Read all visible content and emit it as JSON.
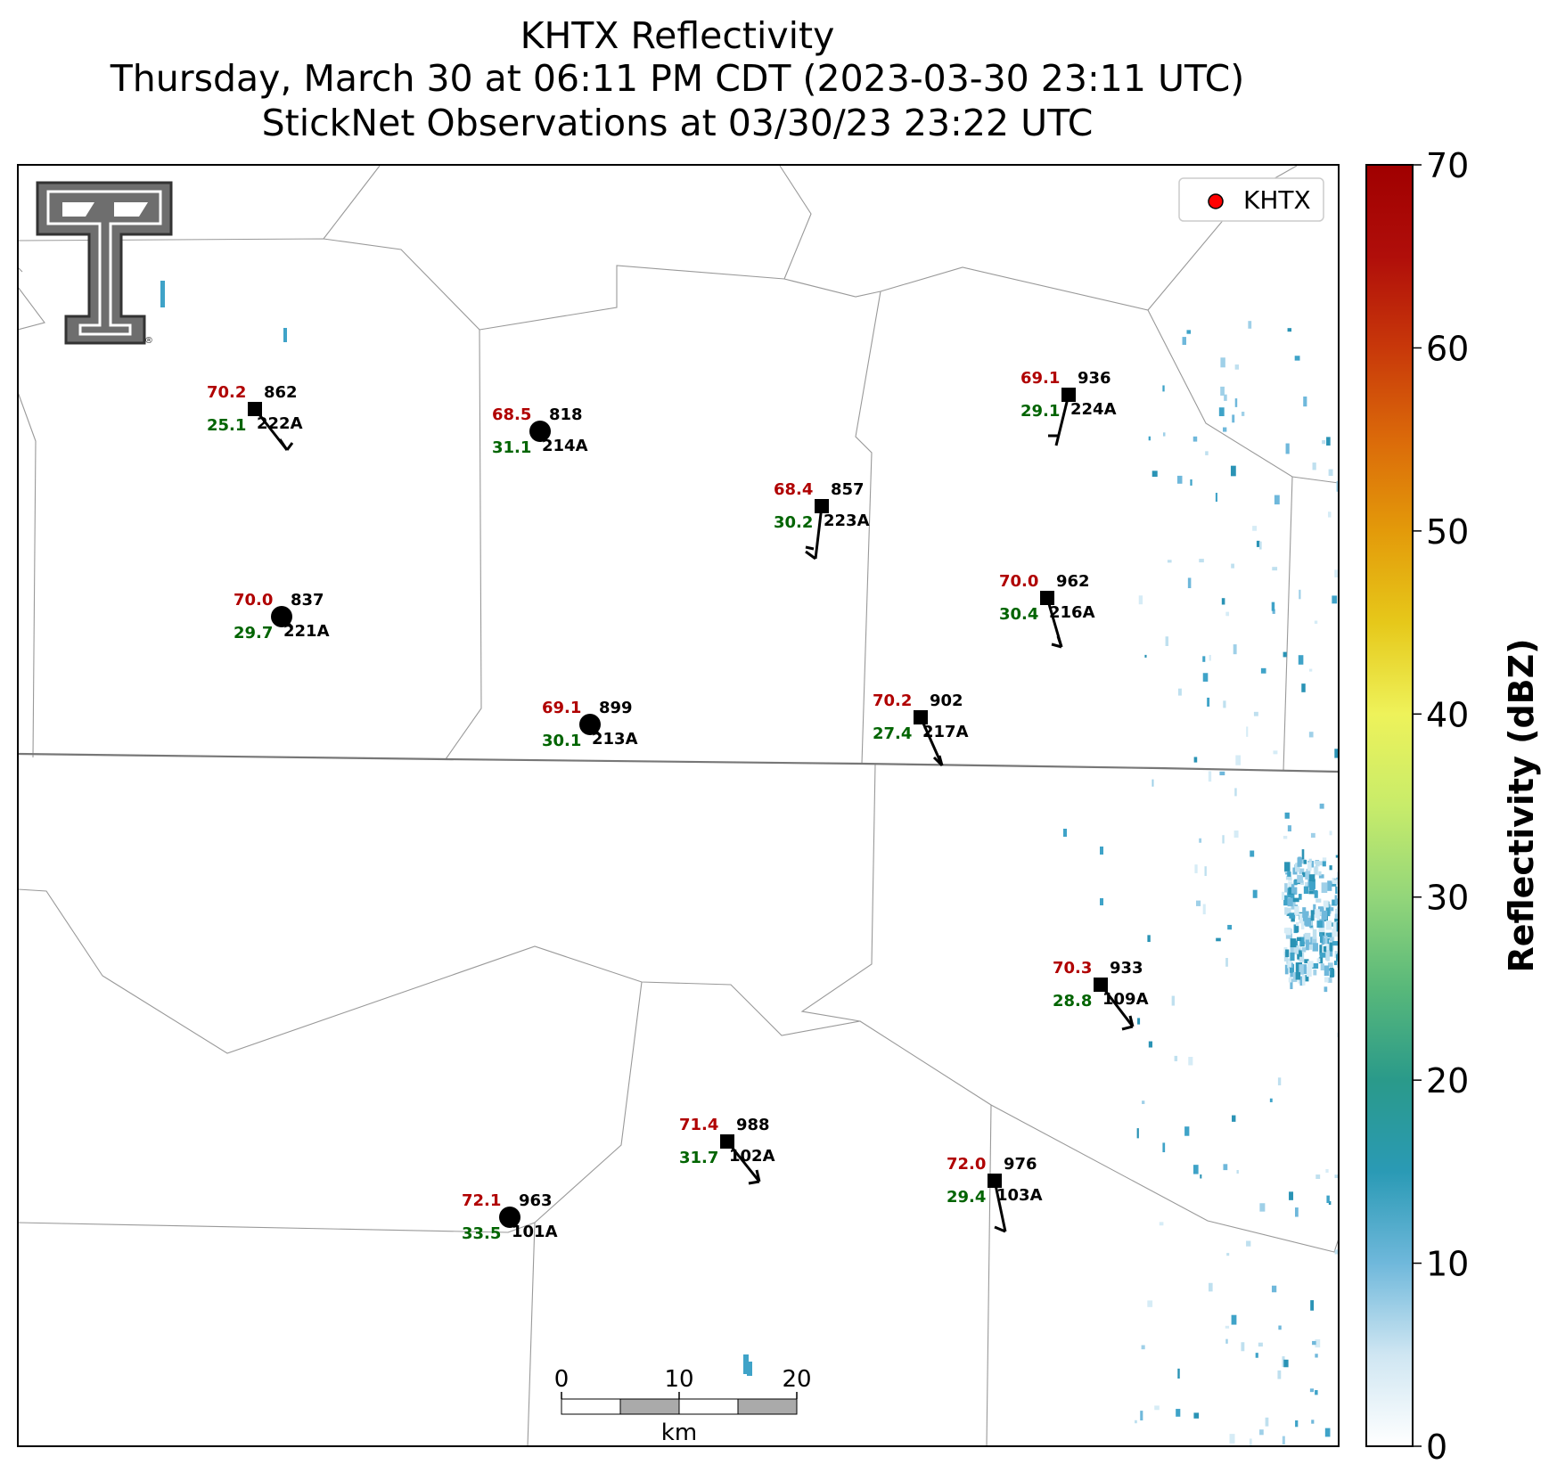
{
  "title": {
    "line1": "KHTX Reflectivity",
    "line2": "Thursday, March 30 at 06:11 PM CDT (2023-03-30 23:11 UTC)",
    "line3": "StickNet Observations at 03/30/23 23:22 UTC"
  },
  "legend": {
    "label": "KHTX",
    "marker_color": "#ff0000"
  },
  "logo": {
    "name": "texas-tech-double-t-logo",
    "mark": "®"
  },
  "colorbar": {
    "label": "Reflectivity (dBZ)",
    "min": 0,
    "max": 70,
    "ticks": [
      "0",
      "10",
      "20",
      "30",
      "40",
      "50",
      "60",
      "70"
    ],
    "colors": [
      "#ffffff",
      "#cfe6f2",
      "#6fb8db",
      "#2a9ab5",
      "#2a9a8a",
      "#58b87a",
      "#93d67a",
      "#c8ec6a",
      "#eef25a",
      "#e6c81a",
      "#e39a0a",
      "#db6a0a",
      "#c8380a",
      "#b00e0a",
      "#a00000"
    ]
  },
  "scalebar": {
    "ticks": [
      "0",
      "10",
      "20"
    ],
    "unit": "km"
  },
  "colors": {
    "temperature": "#b00000",
    "dewpoint": "#006400",
    "station": "#000000",
    "boundary": "#999999",
    "state_line": "#777777"
  },
  "stations": [
    {
      "id": "222A",
      "temp": "70.2",
      "dew": "25.1",
      "pres": "862",
      "marker": "square"
    },
    {
      "id": "214A",
      "temp": "68.5",
      "dew": "31.1",
      "pres": "818",
      "marker": "circle"
    },
    {
      "id": "223A",
      "temp": "68.4",
      "dew": "30.2",
      "pres": "857",
      "marker": "square"
    },
    {
      "id": "224A",
      "temp": "69.1",
      "dew": "29.1",
      "pres": "936",
      "marker": "square"
    },
    {
      "id": "221A",
      "temp": "70.0",
      "dew": "29.7",
      "pres": "837",
      "marker": "circle"
    },
    {
      "id": "216A",
      "temp": "70.0",
      "dew": "30.4",
      "pres": "962",
      "marker": "square"
    },
    {
      "id": "213A",
      "temp": "69.1",
      "dew": "30.1",
      "pres": "899",
      "marker": "circle"
    },
    {
      "id": "217A",
      "temp": "70.2",
      "dew": "27.4",
      "pres": "902",
      "marker": "square"
    },
    {
      "id": "109A",
      "temp": "70.3",
      "dew": "28.8",
      "pres": "933",
      "marker": "square"
    },
    {
      "id": "102A",
      "temp": "71.4",
      "dew": "31.7",
      "pres": "988",
      "marker": "square"
    },
    {
      "id": "103A",
      "temp": "72.0",
      "dew": "29.4",
      "pres": "976",
      "marker": "square"
    },
    {
      "id": "101A",
      "temp": "72.1",
      "dew": "33.5",
      "pres": "963",
      "marker": "circle"
    }
  ]
}
